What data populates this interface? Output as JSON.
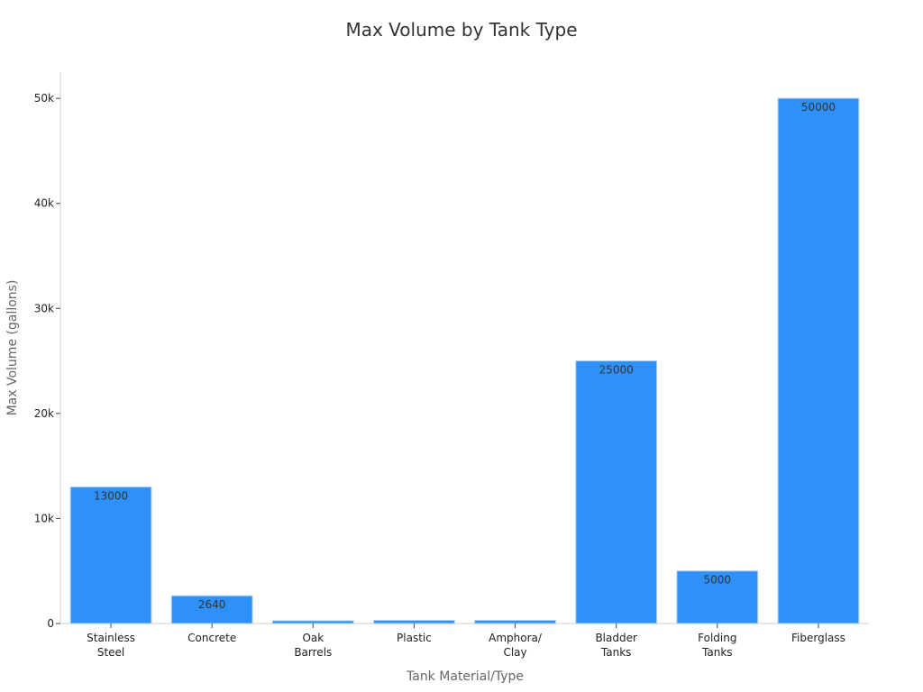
{
  "chart_data": {
    "type": "bar",
    "title": "Max Volume by Tank Type",
    "xlabel": "Tank Material/Type",
    "ylabel": "Max Volume (gallons)",
    "categories": [
      [
        "Stainless",
        "Steel"
      ],
      [
        "Concrete"
      ],
      [
        "Oak",
        "Barrels"
      ],
      [
        "Plastic"
      ],
      [
        "Amphora/",
        "Clay"
      ],
      [
        "Bladder",
        "Tanks"
      ],
      [
        "Folding",
        "Tanks"
      ],
      [
        "Fiberglass"
      ]
    ],
    "values": [
      13000,
      2640,
      265,
      300,
      300,
      25000,
      5000,
      50000
    ],
    "data_labels": [
      "13000",
      "2640",
      "",
      "",
      "",
      "25000",
      "5000",
      "50000"
    ],
    "ylim": [
      0,
      52500
    ],
    "yticks": [
      0,
      10000,
      20000,
      30000,
      40000,
      50000
    ],
    "ytick_labels": [
      "0",
      "10k",
      "20k",
      "30k",
      "40k",
      "50k"
    ],
    "bar_color": "#2e91fa",
    "grid": false,
    "legend": "none"
  }
}
